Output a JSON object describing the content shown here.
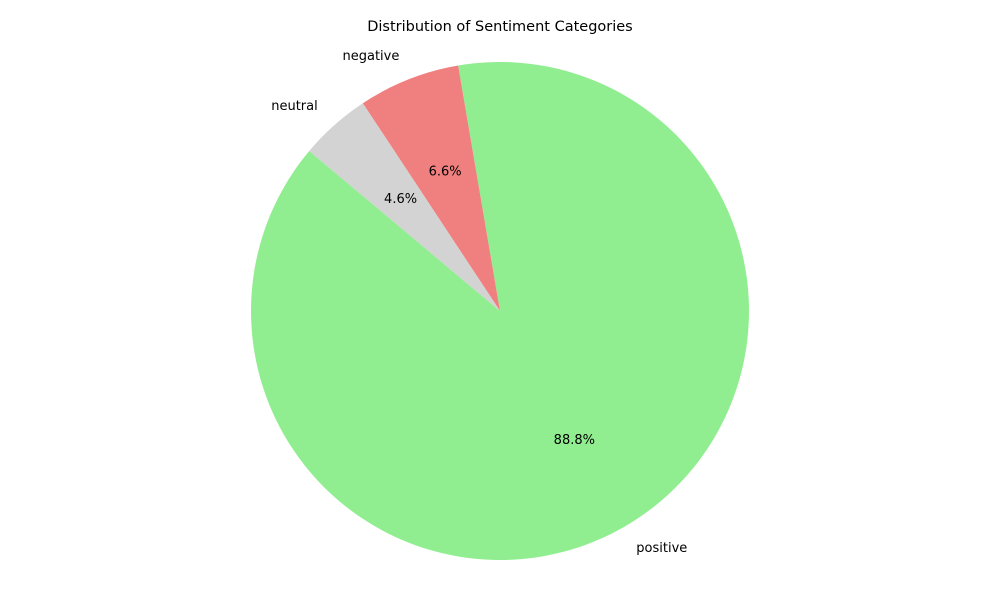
{
  "chart_data": {
    "type": "pie",
    "title": "Distribution of Sentiment Categories",
    "slices": [
      {
        "label": "positive",
        "value": 88.8,
        "pct_label": "88.8%",
        "color": "#90ee90"
      },
      {
        "label": "negative",
        "value": 6.6,
        "pct_label": "6.6%",
        "color": "#f08080"
      },
      {
        "label": "neutral",
        "value": 4.6,
        "pct_label": "4.6%",
        "color": "#d3d3d3"
      }
    ],
    "start_angle_deg": 140,
    "direction": "counterclockwise",
    "legend": "none"
  }
}
